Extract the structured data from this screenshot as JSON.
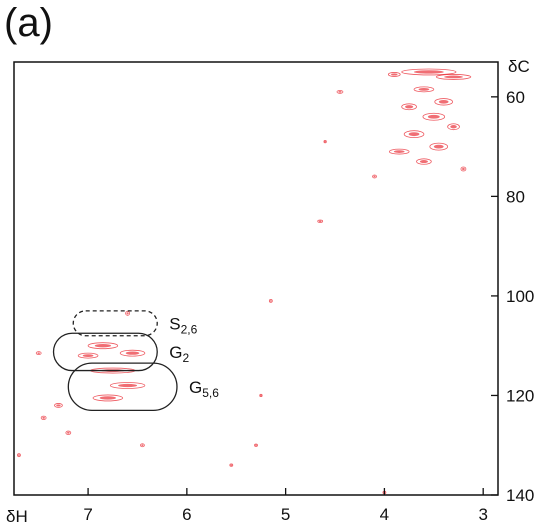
{
  "panel_label": "(a)",
  "colors": {
    "peak": "#e8202a",
    "axis": "#111111",
    "region_outline": "#222222"
  },
  "chart_data": {
    "type": "scatter",
    "title": "",
    "xlabel": "δH",
    "ylabel": "δC",
    "xlim": [
      7.75,
      2.85
    ],
    "ylim": [
      53,
      140
    ],
    "x_reversed": true,
    "y_reversed": true,
    "grid": false,
    "x_ticks": [
      7,
      6,
      5,
      4,
      3
    ],
    "y_ticks": [
      60,
      80,
      100,
      120,
      140
    ],
    "regions": [
      {
        "label": "S",
        "sub": "2,6",
        "style": "dashed",
        "x_range": [
          7.15,
          6.3
        ],
        "y_range": [
          103,
          108
        ]
      },
      {
        "label": "G",
        "sub": "2",
        "style": "solid",
        "x_range": [
          7.35,
          6.3
        ],
        "y_range": [
          107.5,
          115
        ]
      },
      {
        "label": "G",
        "sub": "5,6",
        "style": "solid",
        "x_range": [
          7.2,
          6.1
        ],
        "y_range": [
          113.5,
          123
        ]
      }
    ],
    "peaks": [
      {
        "x": 3.55,
        "y": 55.0,
        "w": 0.55,
        "h": 1.2
      },
      {
        "x": 3.3,
        "y": 56.0,
        "w": 0.35,
        "h": 1.0
      },
      {
        "x": 3.9,
        "y": 55.5,
        "w": 0.12,
        "h": 0.8
      },
      {
        "x": 3.6,
        "y": 58.5,
        "w": 0.2,
        "h": 1.0
      },
      {
        "x": 3.4,
        "y": 61.0,
        "w": 0.18,
        "h": 1.3
      },
      {
        "x": 3.75,
        "y": 62.0,
        "w": 0.15,
        "h": 1.2
      },
      {
        "x": 3.5,
        "y": 64.0,
        "w": 0.22,
        "h": 1.4
      },
      {
        "x": 3.3,
        "y": 66.0,
        "w": 0.12,
        "h": 1.2
      },
      {
        "x": 3.7,
        "y": 67.5,
        "w": 0.2,
        "h": 1.4
      },
      {
        "x": 3.45,
        "y": 70.0,
        "w": 0.18,
        "h": 1.4
      },
      {
        "x": 3.85,
        "y": 71.0,
        "w": 0.2,
        "h": 1.0
      },
      {
        "x": 3.6,
        "y": 73.0,
        "w": 0.15,
        "h": 1.1
      },
      {
        "x": 3.2,
        "y": 74.5,
        "w": 0.05,
        "h": 0.8
      },
      {
        "x": 4.45,
        "y": 59.0,
        "w": 0.06,
        "h": 0.6
      },
      {
        "x": 4.1,
        "y": 76.0,
        "w": 0.04,
        "h": 0.6
      },
      {
        "x": 4.65,
        "y": 85.0,
        "w": 0.05,
        "h": 0.5
      },
      {
        "x": 5.15,
        "y": 101.0,
        "w": 0.03,
        "h": 0.6
      },
      {
        "x": 6.6,
        "y": 103.5,
        "w": 0.04,
        "h": 0.8
      },
      {
        "x": 6.85,
        "y": 110.0,
        "w": 0.3,
        "h": 1.2
      },
      {
        "x": 6.55,
        "y": 111.5,
        "w": 0.25,
        "h": 1.2
      },
      {
        "x": 7.0,
        "y": 112.0,
        "w": 0.2,
        "h": 1.0
      },
      {
        "x": 6.75,
        "y": 115.0,
        "w": 0.45,
        "h": 1.0
      },
      {
        "x": 6.6,
        "y": 118.0,
        "w": 0.35,
        "h": 1.2
      },
      {
        "x": 6.8,
        "y": 120.5,
        "w": 0.3,
        "h": 1.2
      },
      {
        "x": 7.3,
        "y": 122.0,
        "w": 0.08,
        "h": 0.8
      },
      {
        "x": 7.45,
        "y": 124.5,
        "w": 0.05,
        "h": 0.7
      },
      {
        "x": 7.2,
        "y": 127.5,
        "w": 0.05,
        "h": 0.7
      },
      {
        "x": 6.45,
        "y": 130.0,
        "w": 0.04,
        "h": 0.6
      },
      {
        "x": 7.7,
        "y": 132.0,
        "w": 0.03,
        "h": 0.6
      },
      {
        "x": 5.3,
        "y": 130.0,
        "w": 0.03,
        "h": 0.5
      },
      {
        "x": 5.55,
        "y": 134.0,
        "w": 0.03,
        "h": 0.5
      },
      {
        "x": 4.0,
        "y": 139.5,
        "w": 0.03,
        "h": 0.5
      },
      {
        "x": 5.25,
        "y": 120.0,
        "w": 0.02,
        "h": 0.4
      },
      {
        "x": 7.5,
        "y": 111.5,
        "w": 0.05,
        "h": 0.6
      },
      {
        "x": 4.6,
        "y": 69.0,
        "w": 0.02,
        "h": 0.5
      }
    ]
  }
}
